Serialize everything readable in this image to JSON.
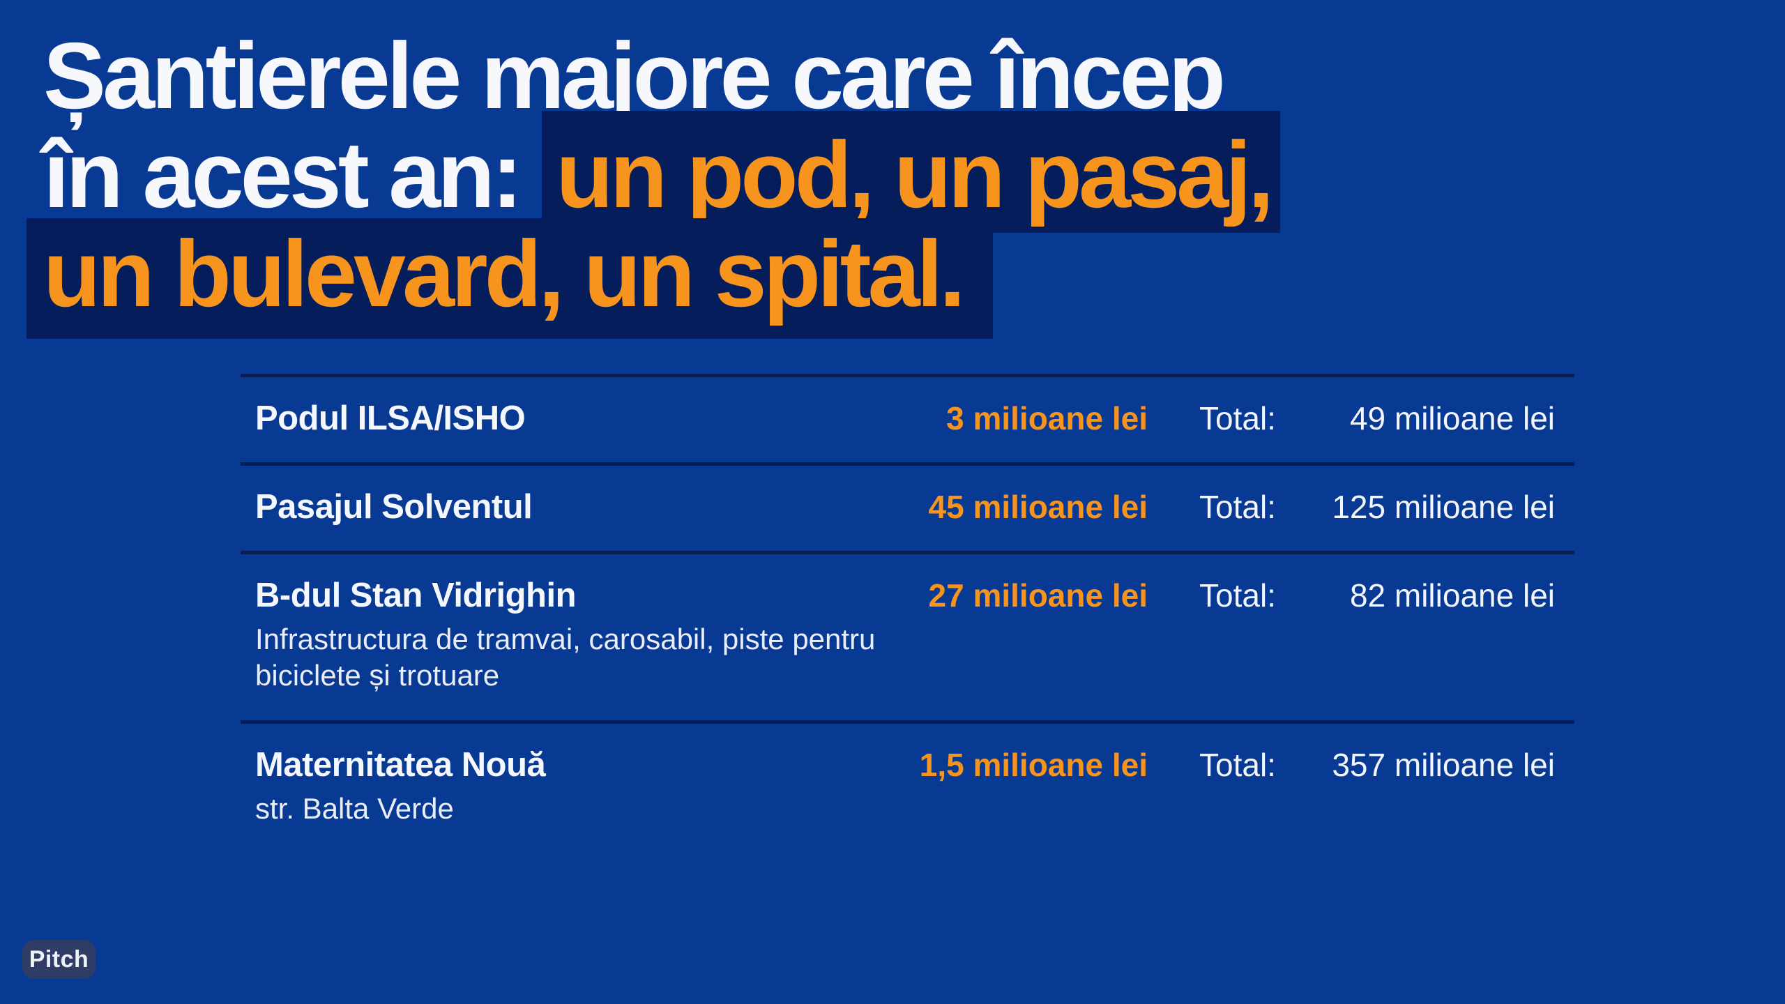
{
  "title": {
    "line1": "Șantierele majore care încep",
    "line2_plain": "în acest an: ",
    "line2_highlight": "un pod, un pasaj,",
    "line3_highlight": "un bulevard, un spital."
  },
  "table": {
    "total_label": "Total:",
    "rows": [
      {
        "name": "Podul ILSA/ISHO",
        "value": "3 milioane lei",
        "total": "49 milioane lei"
      },
      {
        "name": "Pasajul Solventul",
        "value": "45 milioane lei",
        "total": "125 milioane lei"
      },
      {
        "name": "B-dul Stan Vidrighin",
        "subtitle": "Infrastructura de tramvai, carosabil, piste pentru biciclete și trotuare",
        "value": "27 milioane lei",
        "total": "82 milioane lei"
      },
      {
        "name": "Maternitatea Nouă",
        "subtitle": "str. Balta Verde",
        "value": "1,5 milioane lei",
        "total": "357 milioane lei"
      }
    ]
  },
  "branding": {
    "logo_text": "Pitch"
  },
  "colors": {
    "background": "#093A93",
    "highlight_navy": "#061D5B",
    "separator": "#081D52",
    "accent_orange": "#F7941D",
    "text_white": "#F6F8FC",
    "badge_background": "#2F3D66"
  }
}
